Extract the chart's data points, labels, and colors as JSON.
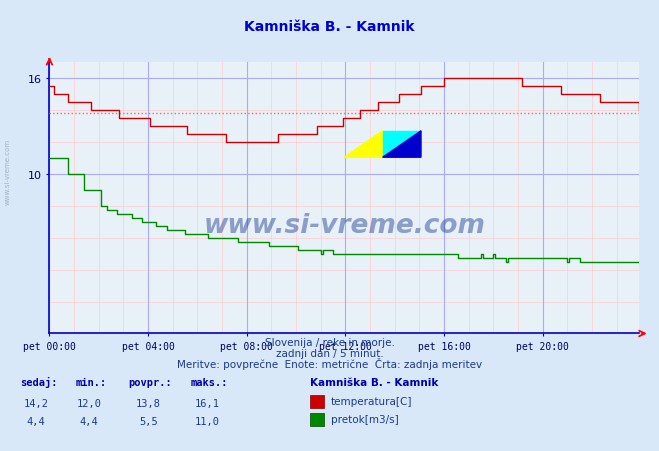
{
  "title": "Kamniška B. - Kamnik",
  "title_color": "#0000cc",
  "bg_color": "#d8e8f8",
  "plot_bg_color": "#e8f0f8",
  "grid_major_color": "#aaaaff",
  "grid_minor_color": "#ffcccc",
  "axis_color": "#0000cc",
  "arrow_color": "#ff0000",
  "tick_label_color": "#000066",
  "xlabels": [
    "pet 00:00",
    "pet 04:00",
    "pet 08:00",
    "pet 12:00",
    "pet 16:00",
    "pet 20:00"
  ],
  "xticks_major": [
    0,
    48,
    96,
    144,
    192,
    240
  ],
  "yticks": [
    10,
    16
  ],
  "ylim": [
    0,
    17.0
  ],
  "xlim": [
    0,
    287
  ],
  "avg_line_value": 13.8,
  "avg_line_color": "#ff6666",
  "temp_color": "#cc0000",
  "flow_color": "#008800",
  "watermark_text": "www.si-vreme.com",
  "watermark_color": "#1a3a8c",
  "watermark_alpha": 0.45,
  "footer_line1": "Slovenija / reke in morje.",
  "footer_line2": "zadnji dan / 5 minut.",
  "footer_line3": "Meritve: povprečne  Enote: metrične  Črta: zadnja meritev",
  "footer_color": "#1a3a8c",
  "table_headers": [
    "sedaj:",
    "min.:",
    "povpr.:",
    "maks.:"
  ],
  "table_header_color": "#0000aa",
  "table_data_temp": [
    "14,2",
    "12,0",
    "13,8",
    "16,1"
  ],
  "table_data_flow": [
    "4,4",
    "4,4",
    "5,5",
    "11,0"
  ],
  "legend_title": "Kamniška B. - Kamnik",
  "legend_temp": "temperatura[C]",
  "legend_flow": "pretok[m3/s]",
  "sidebar_text": "www.si-vreme.com",
  "sidebar_color": "#8899bb"
}
